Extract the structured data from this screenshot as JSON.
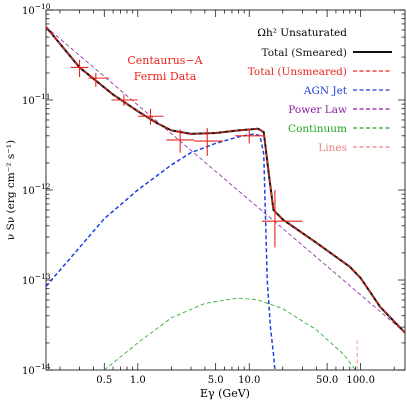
{
  "chart_data": {
    "type": "line",
    "title": "",
    "annotation": {
      "line1": "Centaurus−A",
      "line2": "Fermi Data",
      "color": "#e8261e"
    },
    "xlabel": "Eγ (GeV)",
    "ylabel": "ν Sν (erg cm⁻² s⁻¹)",
    "xscale": "log",
    "yscale": "log",
    "xlim": [
      0.15,
      250
    ],
    "ylim": [
      1e-14,
      1e-10
    ],
    "x_ticks": [
      {
        "value": 0.5,
        "label": "0.5"
      },
      {
        "value": 1.0,
        "label": "1.0"
      },
      {
        "value": 5.0,
        "label": "5.0"
      },
      {
        "value": 10.0,
        "label": "10.0"
      },
      {
        "value": 50.0,
        "label": "50.0"
      },
      {
        "value": 100.0,
        "label": "100.0"
      }
    ],
    "y_ticks": [
      {
        "value": 1e-10,
        "base": "10",
        "exp": "−10"
      },
      {
        "value": 1e-11,
        "base": "10",
        "exp": "−11"
      },
      {
        "value": 1e-12,
        "base": "10",
        "exp": "−12"
      },
      {
        "value": 1e-13,
        "base": "10",
        "exp": "−13"
      },
      {
        "value": 1e-14,
        "base": "10",
        "exp": "−14"
      }
    ],
    "legend": {
      "title": "Ωh² Unsaturated",
      "position": "top-right"
    },
    "series": [
      {
        "name": "Total (Smeared)",
        "color": "#111111",
        "dash": "solid",
        "label_color": "#111111",
        "points": [
          [
            0.15,
            6.5e-11
          ],
          [
            0.3,
            2.3e-11
          ],
          [
            0.6,
            1.15e-11
          ],
          [
            1.0,
            7.5e-12
          ],
          [
            1.5,
            5.5e-12
          ],
          [
            2.0,
            4.6e-12
          ],
          [
            3.0,
            4.2e-12
          ],
          [
            5.0,
            4.3e-12
          ],
          [
            8.0,
            4.6e-12
          ],
          [
            12.0,
            4.8e-12
          ],
          [
            13.5,
            4.4e-12
          ],
          [
            15.0,
            1.5e-12
          ],
          [
            16.5,
            6e-13
          ],
          [
            20.0,
            4.7e-13
          ],
          [
            40.0,
            2.6e-13
          ],
          [
            80.0,
            1.4e-13
          ],
          [
            90.0,
            1.2e-13
          ],
          [
            100.0,
            1.05e-13
          ],
          [
            150.0,
            5e-14
          ],
          [
            250.0,
            2.6e-14
          ]
        ]
      },
      {
        "name": "Total (Unsmeared)",
        "color": "#e8261e",
        "dash": "dashed",
        "label_color": "#e8261e",
        "points": [
          [
            0.15,
            6.5e-11
          ],
          [
            0.3,
            2.3e-11
          ],
          [
            0.6,
            1.15e-11
          ],
          [
            1.0,
            7.5e-12
          ],
          [
            1.5,
            5.5e-12
          ],
          [
            2.0,
            4.6e-12
          ],
          [
            3.0,
            4.2e-12
          ],
          [
            5.0,
            4.3e-12
          ],
          [
            8.0,
            4.6e-12
          ],
          [
            12.0,
            4.8e-12
          ],
          [
            13.5,
            4.4e-12
          ],
          [
            15.0,
            1.5e-12
          ],
          [
            16.5,
            6e-13
          ],
          [
            20.0,
            4.7e-13
          ],
          [
            40.0,
            2.6e-13
          ],
          [
            80.0,
            1.4e-13
          ],
          [
            90.0,
            1.2e-13
          ],
          [
            100.0,
            1.05e-13
          ],
          [
            150.0,
            5e-14
          ],
          [
            250.0,
            2.6e-14
          ]
        ]
      },
      {
        "name": "AGN Jet",
        "color": "#1f3fe0",
        "dash": "dashed",
        "label_color": "#1f3fe0",
        "points": [
          [
            0.15,
            8.5e-14
          ],
          [
            0.3,
            2.3e-13
          ],
          [
            0.5,
            4.8e-13
          ],
          [
            1.0,
            1e-12
          ],
          [
            2.0,
            1.9e-12
          ],
          [
            3.0,
            2.6e-12
          ],
          [
            5.0,
            3.3e-12
          ],
          [
            8.0,
            3.9e-12
          ],
          [
            11.0,
            4.2e-12
          ],
          [
            12.5,
            4e-12
          ],
          [
            13.5,
            2.5e-12
          ],
          [
            14.0,
            5e-13
          ],
          [
            14.5,
            1e-13
          ],
          [
            15.5,
            3e-14
          ],
          [
            16.5,
            1.5e-14
          ],
          [
            17.0,
            1e-14
          ]
        ]
      },
      {
        "name": "Power Law",
        "color": "#8a1f9e",
        "dash": "dashed",
        "label_color": "#8a1f9e",
        "points": [
          [
            0.15,
            6.5e-11
          ],
          [
            250.0,
            2.6e-14
          ]
        ]
      },
      {
        "name": "Continuum",
        "color": "#1fa51f",
        "dash": "dashed",
        "label_color": "#1fa51f",
        "points": [
          [
            0.5,
            1e-14
          ],
          [
            1.0,
            2e-14
          ],
          [
            2.0,
            3.8e-14
          ],
          [
            4.0,
            5.5e-14
          ],
          [
            8.0,
            6.3e-14
          ],
          [
            12.0,
            6e-14
          ],
          [
            20.0,
            4.8e-14
          ],
          [
            40.0,
            2.8e-14
          ],
          [
            70.0,
            1.5e-14
          ],
          [
            90.0,
            1e-14
          ]
        ]
      },
      {
        "name": "Lines",
        "color": "#f08080",
        "dash": "dashed",
        "label_color": "#f08080",
        "points": [
          [
            93.0,
            1e-14
          ],
          [
            93.0,
            2.3e-14
          ]
        ]
      }
    ],
    "error_bars": {
      "name": "Fermi Data",
      "color": "#e8261e",
      "points": [
        {
          "x": 0.3,
          "y": 2.3e-11,
          "xlo": 0.25,
          "xhi": 0.36,
          "ylo": 1.8e-11,
          "yhi": 2.8e-11
        },
        {
          "x": 0.42,
          "y": 1.75e-11,
          "xlo": 0.36,
          "xhi": 0.55,
          "ylo": 1.4e-11,
          "yhi": 2e-11
        },
        {
          "x": 0.75,
          "y": 1e-11,
          "xlo": 0.58,
          "xhi": 1.0,
          "ylo": 8.6e-12,
          "yhi": 1.15e-11
        },
        {
          "x": 1.3,
          "y": 6.6e-12,
          "xlo": 1.0,
          "xhi": 1.7,
          "ylo": 5.3e-12,
          "yhi": 8e-12
        },
        {
          "x": 2.4,
          "y": 3.6e-12,
          "xlo": 1.8,
          "xhi": 3.2,
          "ylo": 2.6e-12,
          "yhi": 4.7e-12
        },
        {
          "x": 4.2,
          "y": 3.5e-12,
          "xlo": 3.2,
          "xhi": 5.8,
          "ylo": 2.4e-12,
          "yhi": 4.9e-12
        },
        {
          "x": 10.0,
          "y": 4e-12,
          "xlo": 7.5,
          "xhi": 13.5,
          "ylo": 3.3e-12,
          "yhi": 4.8e-12
        },
        {
          "x": 17.0,
          "y": 4.5e-13,
          "xlo": 13.0,
          "xhi": 30.0,
          "ylo": 2.3e-13,
          "yhi": 1e-12
        }
      ]
    }
  }
}
